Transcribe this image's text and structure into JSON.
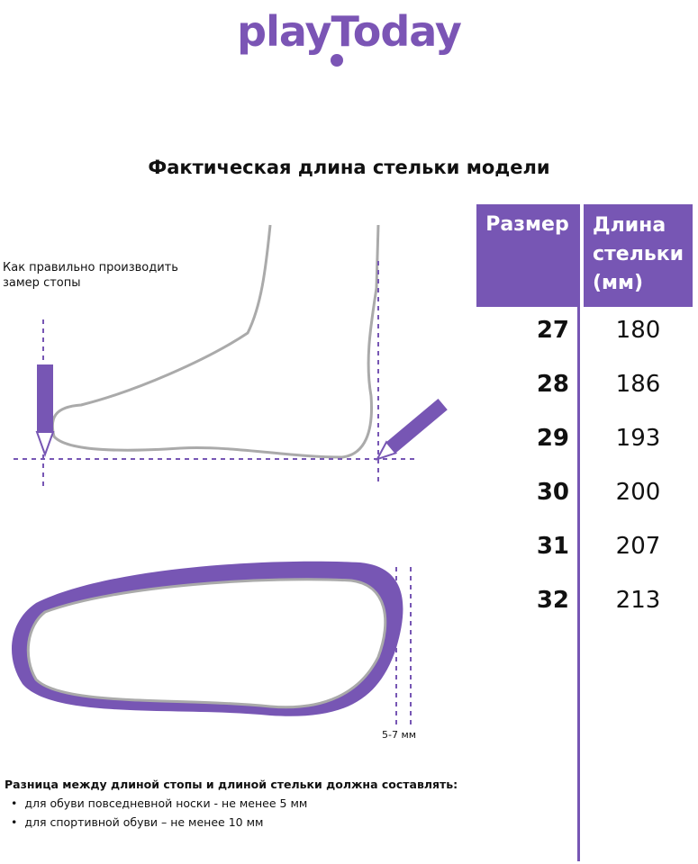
{
  "brand": {
    "logo": "playToday",
    "color": "#7756b4"
  },
  "title": "Фактическая длина стельки модели",
  "table": {
    "headers": [
      "Размер",
      "Длина стельки (мм)"
    ],
    "rows": [
      {
        "size": "27",
        "length": "180"
      },
      {
        "size": "28",
        "length": "186"
      },
      {
        "size": "29",
        "length": "193"
      },
      {
        "size": "30",
        "length": "200"
      },
      {
        "size": "31",
        "length": "207"
      },
      {
        "size": "32",
        "length": "213"
      }
    ]
  },
  "illustration": {
    "howto": "Как правильно производить замер стопы",
    "gap_label": "5-7 мм"
  },
  "note": {
    "heading": "Разница между длиной стопы и длиной стельки должна составлять:",
    "bullets": [
      "для обуви повседневной носки -  не менее 5 мм",
      "для спортивной обуви – не менее 10 мм"
    ]
  }
}
